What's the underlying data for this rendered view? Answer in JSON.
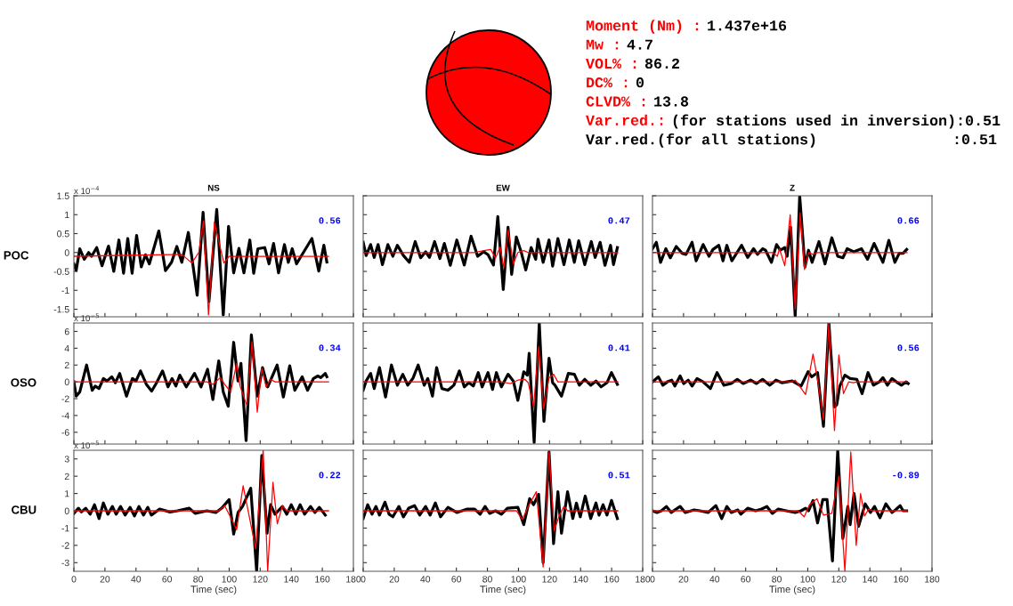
{
  "chart_data": [
    {
      "type": "other",
      "annotations": [
        "Moment (Nm) :",
        "1.437e+16",
        "Mw :",
        "4.7",
        "VOL% :",
        "86.2",
        "DC% :",
        "0",
        "CLVD% :",
        "13.8",
        "Var.red.:",
        "(for stations used in inversion):0.51",
        "Var.red.(for all stations)",
        ":0.51"
      ],
      "colors": [
        "#ff0000",
        "#000000",
        "#ff0000",
        "#000000",
        "#ff0000",
        "#000000",
        "#ff0000",
        "#000000",
        "#ff0000",
        "#000000",
        "#ff0000",
        "#000000",
        "#000000",
        "#000000"
      ]
    },
    {
      "type": "line",
      "title": "NS",
      "ylabel": "POC",
      "xlim": [
        0,
        180
      ],
      "xticks": [
        0,
        20,
        40,
        60,
        80,
        100,
        120,
        140,
        160,
        180
      ],
      "ylim": [
        -1.7,
        1.5
      ],
      "yticks": [
        -1.5,
        -1,
        -0.5,
        0,
        0.5,
        1,
        1.5
      ],
      "tick_labels": "y",
      "annotations": [
        "0.56",
        "x 10$^{−4}$"
      ],
      "series": [
        {
          "color": "#000000",
          "x": [
            0,
            1.5,
            3.8,
            6.7,
            9.5,
            11.4,
            14.7,
            18.1,
            22.3,
            25.7,
            29,
            32,
            34.7,
            37.5,
            40.4,
            43.4,
            46.1,
            48.6,
            54.7,
            59,
            62.9,
            66.3,
            69.5,
            73.7,
            79.4,
            83.2,
            87,
            92,
            96.2,
            99.6,
            102.9,
            106.3,
            109.5,
            113.3,
            115.8,
            118.5,
            122.9,
            125.7,
            128.6,
            131.8,
            135.6,
            138.1,
            140.6,
            143.4,
            145.7,
            153.3,
            157.7,
            161,
            162.9
          ],
          "values": [
            -0.3,
            -0.47,
            0.1,
            -0.18,
            0,
            -0.1,
            0.13,
            -0.35,
            0.17,
            -0.5,
            0.33,
            -0.55,
            0.37,
            -0.55,
            0.45,
            -0.38,
            -0.06,
            -0.3,
            0.57,
            -0.48,
            -0.26,
            0.16,
            -0.26,
            0.53,
            -1.13,
            1.06,
            -1.3,
            1.14,
            -1.65,
            0.69,
            -0.54,
            0.11,
            -0.54,
            0.33,
            -0.55,
            0.1,
            0.13,
            -0.3,
            0.24,
            -0.54,
            0.21,
            -0.26,
            0.1,
            -0.3,
            -0.14,
            0.37,
            -0.49,
            0.19,
            -0.25
          ]
        },
        {
          "color": "#ff0000",
          "x": [
            0,
            69.5,
            76,
            80.4,
            83.4,
            86.7,
            90.5,
            93.3,
            96.6,
            100,
            164
          ],
          "values": [
            -0.1,
            -0.05,
            -0.28,
            0,
            0.83,
            -1.65,
            0.8,
            0.3,
            -0.28,
            -0.1,
            -0.1
          ]
        }
      ]
    },
    {
      "type": "line",
      "title": "EW",
      "xlim": [
        0,
        180
      ],
      "xticks": [
        0,
        20,
        40,
        60,
        80,
        100,
        120,
        140,
        160,
        180
      ],
      "ylim": [
        -1.7,
        1.5
      ],
      "yticks": [
        -1.5,
        -1,
        -0.5,
        0,
        0.5,
        1,
        1.5
      ],
      "tick_labels": false,
      "annotations": [
        "0.47"
      ],
      "series": [
        {
          "color": "#000000",
          "x": [
            0,
            1.9,
            4.8,
            7.1,
            9.6,
            12.4,
            15.9,
            19.1,
            22,
            25.9,
            29.7,
            33.5,
            37,
            40.2,
            42.7,
            46,
            49.4,
            52.3,
            56.1,
            60.3,
            65.1,
            69.5,
            73.7,
            77.6,
            80.4,
            83.9,
            86.7,
            90.2,
            93.3,
            95.6,
            98.6,
            101.7,
            104.7,
            108.2,
            111.1,
            112.6,
            115.9,
            119.7,
            122,
            125.4,
            129.3,
            132.7,
            136,
            138.8,
            142.7,
            146.9,
            149.4,
            152.6,
            155.7,
            159.3,
            161.2,
            163.7
          ],
          "values": [
            0.27,
            -0.08,
            0.21,
            -0.13,
            0.21,
            -0.32,
            0.21,
            -0.1,
            0.19,
            -0.08,
            -0.26,
            0.29,
            -0.14,
            0.02,
            -0.13,
            0.29,
            -0.16,
            0.24,
            -0.34,
            0.33,
            -0.33,
            0.43,
            -0.1,
            0.02,
            -0.06,
            -0.33,
            0.95,
            -0.98,
            0.67,
            -0.58,
            0.41,
            0.02,
            -0.46,
            0.13,
            -0.18,
            0.35,
            -0.26,
            0.33,
            -0.36,
            0.37,
            -0.32,
            0.33,
            -0.26,
            0.31,
            -0.32,
            0.29,
            -0.13,
            0.27,
            -0.34,
            0.19,
            -0.32,
            0.13
          ]
        },
        {
          "color": "#ff0000",
          "x": [
            0,
            71.8,
            77.6,
            82.2,
            85.2,
            88.1,
            90.6,
            93.3,
            96.7,
            99.6,
            103.4,
            106.3,
            164
          ],
          "values": [
            0,
            0,
            0.05,
            0.08,
            -0.15,
            0.15,
            -0.4,
            0.6,
            -0.3,
            0,
            0.05,
            0,
            0
          ]
        }
      ]
    },
    {
      "type": "line",
      "title": "Z",
      "xlim": [
        0,
        180
      ],
      "xticks": [
        0,
        20,
        40,
        60,
        80,
        100,
        120,
        140,
        160,
        180
      ],
      "ylim": [
        -1.7,
        1.5
      ],
      "yticks": [
        -1.5,
        -1,
        -0.5,
        0,
        0.5,
        1,
        1.5
      ],
      "tick_labels": false,
      "annotations": [
        "0.66"
      ],
      "series": [
        {
          "color": "#000000",
          "x": [
            0,
            2.5,
            5.2,
            8.6,
            11.5,
            15.3,
            19.1,
            21.6,
            25.5,
            28.1,
            32.6,
            36.4,
            38.9,
            42.7,
            45.4,
            47.9,
            51.1,
            57.4,
            61.3,
            65.1,
            67.6,
            70.9,
            72.8,
            76.6,
            79.9,
            82.3,
            85.2,
            86.7,
            89,
            91.9,
            94.8,
            98.2,
            100.5,
            102.8,
            107.2,
            111.1,
            115.5,
            119.3,
            122.6,
            125.4,
            129.6,
            134.6,
            138.5,
            142.7,
            148.4,
            152.2,
            156.1,
            158.9,
            161.4,
            163.7
          ],
          "values": [
            0.1,
            0.27,
            -0.26,
            0.1,
            -0.14,
            0.16,
            -0.02,
            -0.05,
            0.27,
            -0.22,
            0.21,
            -0.1,
            0.08,
            0.19,
            -0.22,
            0.19,
            -0.22,
            0.19,
            -0.13,
            0.1,
            -0.05,
            0.1,
            0.06,
            -0.26,
            0.21,
            0.06,
            0.13,
            -0.1,
            0.67,
            -1.69,
            1.5,
            -0.38,
            0.06,
            -0.26,
            0.29,
            -0.3,
            0.39,
            -0.1,
            -0.14,
            0.1,
            0.02,
            0.1,
            -0.18,
            0.24,
            -0.26,
            0.32,
            -0.26,
            -0.02,
            -0.02,
            0.08
          ]
        },
        {
          "color": "#ff0000",
          "x": [
            0,
            77.6,
            80.4,
            81.8,
            85.2,
            88.7,
            91.9,
            95.1,
            97.9,
            100.5,
            103.4,
            106.3,
            164
          ],
          "values": [
            0,
            0,
            -0.1,
            0.1,
            -0.35,
            1.0,
            -1.5,
            1.05,
            -0.45,
            0,
            -0.05,
            0,
            0
          ]
        }
      ]
    },
    {
      "type": "line",
      "ylabel": "OSO",
      "xlim": [
        0,
        180
      ],
      "xticks": [
        0,
        20,
        40,
        60,
        80,
        100,
        120,
        140,
        160,
        180
      ],
      "ylim": [
        -7.4,
        7
      ],
      "yticks": [
        -6,
        -4,
        -2,
        0,
        2,
        4,
        6
      ],
      "tick_labels": "y",
      "annotations": [
        "0.34",
        "x 10$^{−5}$"
      ],
      "series": [
        {
          "color": "#000000",
          "x": [
            0,
            1.5,
            3.8,
            8.2,
            11.8,
            13.7,
            16.2,
            19,
            21.3,
            24.4,
            26.7,
            29.5,
            33.9,
            37.7,
            40,
            42.9,
            46.7,
            50.1,
            53.3,
            57.1,
            60.6,
            63.2,
            65.7,
            68.2,
            72.4,
            77.7,
            81.9,
            86.1,
            89.5,
            93.3,
            96.2,
            99.4,
            102.9,
            105.7,
            107.6,
            110.9,
            114.3,
            118.1,
            121.5,
            124.8,
            130.9,
            134.9,
            139,
            142.3,
            147,
            150.5,
            154.3,
            157.1,
            159,
            161.9,
            162.9
          ],
          "values": [
            0,
            -1.7,
            -1.2,
            2.0,
            -1.0,
            -0.5,
            -0.8,
            0.4,
            0.1,
            0.6,
            -0.1,
            1.0,
            -1.7,
            0.4,
            0.1,
            1.3,
            -0.3,
            -1.1,
            -0.1,
            1.3,
            -0.6,
            0.4,
            -0.5,
            0.8,
            -0.6,
            1.0,
            -0.6,
            1.5,
            -2.1,
            2.5,
            -1.2,
            -2.9,
            4.7,
            0.1,
            2.2,
            -7.0,
            5.6,
            -1.7,
            1.7,
            -0.6,
            2.0,
            -1.8,
            1.9,
            -1.0,
            0.6,
            -1.0,
            0.4,
            0.7,
            0.5,
            1.0,
            0.6
          ]
        },
        {
          "color": "#ff0000",
          "x": [
            0,
            85.7,
            89.5,
            94.3,
            97.1,
            101,
            104.8,
            107,
            111.4,
            114.7,
            118.1,
            121,
            123.8,
            126.7,
            129.5,
            164
          ],
          "values": [
            0,
            0,
            -0.3,
            0.5,
            -0.3,
            -1.2,
            2.2,
            -0.5,
            -2.8,
            4.8,
            -3.6,
            1.6,
            -0.6,
            0.3,
            0,
            0
          ]
        }
      ]
    },
    {
      "type": "line",
      "xlim": [
        0,
        180
      ],
      "xticks": [
        0,
        20,
        40,
        60,
        80,
        100,
        120,
        140,
        160,
        180
      ],
      "ylim": [
        -7.4,
        7
      ],
      "yticks": [
        -6,
        -4,
        -2,
        0,
        2,
        4,
        6
      ],
      "tick_labels": false,
      "annotations": [
        "0.41"
      ],
      "series": [
        {
          "color": "#000000",
          "x": [
            0,
            1.9,
            4.8,
            7.1,
            10.5,
            14.4,
            18.2,
            22,
            25.5,
            28.7,
            32,
            35.4,
            39.3,
            41.6,
            44.6,
            47.3,
            50.7,
            54.6,
            58.4,
            61.9,
            65.1,
            68,
            70.9,
            74.1,
            76.6,
            80.4,
            83.3,
            85.8,
            89,
            93.3,
            96.7,
            99.6,
            103.4,
            105.7,
            106.9,
            110.1,
            113.4,
            116.4,
            119.7,
            122,
            123.5,
            127.7,
            132.1,
            136,
            139.2,
            142.7,
            146.5,
            149.9,
            153.2,
            157,
            159.9,
            163.7
          ],
          "values": [
            -1.0,
            0.1,
            1.0,
            -0.8,
            1.7,
            -1.8,
            2.0,
            -0.4,
            0.9,
            -0.4,
            0.4,
            2.0,
            -0.4,
            0.4,
            -1.7,
            1.7,
            -0.8,
            -1.0,
            -0.4,
            1.3,
            -0.6,
            -0.1,
            -0.5,
            1.1,
            -0.6,
            1.1,
            -0.9,
            1.1,
            -0.6,
            0.9,
            0.1,
            -2.2,
            1.2,
            0.8,
            3.4,
            -7.2,
            7.0,
            -4.7,
            2.8,
            -0.1,
            -0.4,
            -1.7,
            1.0,
            0.9,
            -0.4,
            0.3,
            -0.4,
            0.1,
            -0.6,
            -0.1,
            1.1,
            -0.3
          ]
        },
        {
          "color": "#ff0000",
          "x": [
            0,
            89,
            94.8,
            99.6,
            104,
            106.3,
            109.7,
            113,
            116.2,
            119.7,
            122.6,
            125.4,
            164
          ],
          "values": [
            0,
            0,
            -0.2,
            0.2,
            0.3,
            -0.1,
            -3.0,
            4.2,
            -3.2,
            0.5,
            0.9,
            0,
            0
          ]
        }
      ]
    },
    {
      "type": "line",
      "xlim": [
        0,
        180
      ],
      "xticks": [
        0,
        20,
        40,
        60,
        80,
        100,
        120,
        140,
        160,
        180
      ],
      "ylim": [
        -7.4,
        7
      ],
      "yticks": [
        -6,
        -4,
        -2,
        0,
        2,
        4,
        6
      ],
      "tick_labels": false,
      "annotations": [
        "0.56"
      ],
      "series": [
        {
          "color": "#000000",
          "x": [
            0,
            3.8,
            6.7,
            9.6,
            12.4,
            14.4,
            17.8,
            20.1,
            23,
            25.5,
            28.7,
            32.6,
            37.3,
            41.6,
            46,
            50.7,
            54.6,
            58.4,
            63.2,
            67,
            70.9,
            75.6,
            79.5,
            83.3,
            90,
            95.7,
            100.2,
            102.5,
            106.3,
            110.1,
            113.6,
            117.2,
            118.7,
            120.6,
            123.9,
            127.3,
            131.6,
            135,
            138.8,
            142.3,
            146.1,
            148.4,
            151.3,
            154.2,
            157,
            160.3,
            163.4,
            164.7
          ],
          "values": [
            0,
            0.6,
            -0.4,
            0,
            0.2,
            -0.5,
            0.7,
            -0.2,
            0.2,
            -0.5,
            0.4,
            0,
            -0.8,
            1.1,
            -0.4,
            -0.2,
            0.3,
            -0.2,
            0.2,
            -0.2,
            0.3,
            -0.4,
            0.2,
            -0.1,
            0.1,
            -0.5,
            1.2,
            0.6,
            1.1,
            -5.3,
            7.0,
            -3.0,
            -2.7,
            -0.5,
            0.8,
            0.4,
            0.3,
            -1.4,
            1.1,
            -0.4,
            0,
            0.5,
            -0.4,
            0.4,
            0,
            -0.4,
            0,
            -0.2
          ]
        },
        {
          "color": "#ff0000",
          "x": [
            0,
            89,
            91.9,
            98.6,
            103.4,
            106.9,
            110.1,
            113.6,
            117.2,
            120,
            123,
            126.4,
            129.3,
            132.1,
            164
          ],
          "values": [
            0,
            0,
            0.2,
            -1.5,
            3.3,
            -0.4,
            -4.5,
            7.0,
            -5.8,
            3.2,
            -1.4,
            0,
            -0.1,
            0,
            0
          ]
        }
      ]
    },
    {
      "type": "line",
      "ylabel": "CBU",
      "xlabel": "Time (sec)",
      "xlim": [
        0,
        180
      ],
      "xticks": [
        0,
        20,
        40,
        60,
        80,
        100,
        120,
        140,
        160,
        180
      ],
      "ylim": [
        -3.5,
        3.5
      ],
      "yticks": [
        -3,
        -2,
        -1,
        0,
        1,
        2,
        3
      ],
      "annotations": [
        "0.22",
        "x 10$^{−5}$"
      ],
      "series": [
        {
          "color": "#000000",
          "x": [
            0,
            2.9,
            4.8,
            7.6,
            10.5,
            13.3,
            16.2,
            19,
            21.9,
            24.8,
            27.2,
            30.1,
            33,
            36.2,
            39,
            41.9,
            44.8,
            47.6,
            49.9,
            55.2,
            61.9,
            66.7,
            74.3,
            78.1,
            85.7,
            91.4,
            95.2,
            100,
            102.9,
            105.7,
            108.6,
            113.9,
            117.7,
            121,
            124.4,
            126.7,
            129.5,
            134.3,
            137.1,
            140,
            142.9,
            145.7,
            148.6,
            152.4,
            155.2,
            158.1,
            161.9
          ],
          "values": [
            -0.15,
            0.15,
            -0.07,
            0.15,
            -0.2,
            0.35,
            -0.45,
            0.45,
            -0.2,
            0.25,
            -0.2,
            0.25,
            -0.25,
            0.2,
            -0.3,
            0.25,
            -0.25,
            0.2,
            -0.25,
            0.1,
            -0.07,
            0,
            0.15,
            -0.15,
            0,
            -0.1,
            0.15,
            0.65,
            -1.35,
            -0.1,
            0.25,
            1.3,
            -3.5,
            3.2,
            -1.3,
            0.35,
            -0.2,
            0.25,
            -0.2,
            0.35,
            -0.2,
            0.35,
            -0.2,
            0.25,
            -0.1,
            0.2,
            -0.25
          ]
        },
        {
          "color": "#ff0000",
          "x": [
            0,
            93.3,
            97.1,
            101,
            104.8,
            109,
            113.3,
            117.1,
            121.9,
            124.8,
            128.2,
            131,
            134.3,
            137.1,
            164
          ],
          "values": [
            0,
            0,
            0.3,
            -0.4,
            -1.1,
            1.45,
            -0.5,
            -2.2,
            3.5,
            -3.5,
            1.65,
            -0.75,
            0.3,
            0,
            0
          ]
        }
      ]
    },
    {
      "type": "line",
      "xlabel": "Time (sec)",
      "xlim": [
        0,
        180
      ],
      "xticks": [
        0,
        20,
        40,
        60,
        80,
        100,
        120,
        140,
        160,
        180
      ],
      "ylim": [
        -3.5,
        3.5
      ],
      "yticks": [
        -3,
        -2,
        -1,
        0,
        1,
        2,
        3
      ],
      "tick_labels": "x",
      "annotations": [
        "0.51"
      ],
      "series": [
        {
          "color": "#000000",
          "x": [
            0,
            2.9,
            5.7,
            8.2,
            10.5,
            14,
            16.7,
            19.1,
            23,
            25.9,
            29.3,
            33.1,
            36.4,
            40.2,
            43.1,
            46.5,
            49.8,
            54.6,
            60.3,
            67,
            71.8,
            75.3,
            78.5,
            81.4,
            85.2,
            89,
            92.9,
            99.6,
            103.4,
            107.2,
            109.7,
            113,
            115.9,
            119.7,
            122.6,
            125.4,
            127.7,
            131.6,
            135,
            137.3,
            139.8,
            143,
            146.5,
            149.9,
            151.9,
            154.5,
            157,
            159.9,
            163.7
          ],
          "values": [
            -0.45,
            0.35,
            -0.2,
            0.25,
            -0.25,
            0.5,
            -0.2,
            -0.35,
            0.25,
            -0.35,
            0.15,
            0.3,
            -0.25,
            0.25,
            -0.25,
            0.45,
            -0.35,
            0.2,
            -0.1,
            0.1,
            0.1,
            -0.2,
            0.25,
            -0.15,
            0,
            -0.2,
            0.15,
            0.2,
            -0.8,
            0.7,
            0.35,
            0.95,
            -3.0,
            3.4,
            -1.9,
            1.1,
            -1.3,
            1.1,
            -0.45,
            0.45,
            -0.35,
            0.85,
            -0.45,
            0.45,
            -0.25,
            0.35,
            -0.25,
            0.6,
            -0.45
          ]
        },
        {
          "color": "#ff0000",
          "x": [
            0,
            98.6,
            102.5,
            106.3,
            111.5,
            115.9,
            119.7,
            123,
            126.4,
            129.3,
            131.6,
            164
          ],
          "values": [
            0,
            0,
            -0.5,
            0.25,
            1.1,
            -3.25,
            3.4,
            -1.15,
            -0.25,
            0.25,
            0,
            0
          ]
        }
      ]
    },
    {
      "type": "line",
      "xlabel": "Time (sec)",
      "xlim": [
        0,
        180
      ],
      "xticks": [
        0,
        20,
        40,
        60,
        80,
        100,
        120,
        140,
        160,
        180
      ],
      "ylim": [
        -3.5,
        3.5
      ],
      "yticks": [
        -3,
        -2,
        -1,
        0,
        1,
        2,
        3
      ],
      "tick_labels": "x",
      "annotations": [
        "-0.89"
      ],
      "series": [
        {
          "color": "#000000",
          "x": [
            0,
            2.9,
            5.7,
            9,
            12.1,
            17.8,
            21.1,
            26.8,
            30.6,
            35.8,
            40.8,
            44.6,
            47.9,
            50.7,
            55,
            56.9,
            61.3,
            66.4,
            70.3,
            73.7,
            77.2,
            81,
            86.2,
            91.9,
            95.7,
            98.6,
            100.5,
            103.4,
            106.3,
            109.7,
            112.4,
            115.9,
            119.3,
            122.6,
            125.8,
            127.3,
            129.8,
            132.7,
            137,
            140.4,
            143,
            146.5,
            150.3,
            154.2,
            156.5,
            159.5,
            161.4,
            163.7
          ],
          "values": [
            0,
            -0.1,
            0,
            0.25,
            -0.1,
            0.25,
            -0.1,
            0.05,
            0,
            -0.1,
            0.3,
            -0.45,
            0.25,
            -0.1,
            0.05,
            -0.2,
            0.15,
            0,
            0.1,
            0.25,
            -0.15,
            0.1,
            0,
            -0.1,
            0,
            0.15,
            0,
            0.6,
            -0.7,
            0.65,
            0.65,
            -2.9,
            3.5,
            -1.6,
            0.25,
            -0.8,
            1.0,
            -0.9,
            0.4,
            -0.1,
            0.25,
            -0.4,
            0.4,
            -0.1,
            0.05,
            0.3,
            0,
            0
          ]
        },
        {
          "color": "#ff0000",
          "x": [
            0,
            93.8,
            97.7,
            101.1,
            105.9,
            110.1,
            115.5,
            120,
            123.9,
            127.7,
            131.2,
            134,
            136.6,
            139.2,
            141.7,
            164
          ],
          "values": [
            0,
            0,
            -0.35,
            0.35,
            0.7,
            -0.25,
            -0.15,
            2.0,
            -3.5,
            3.4,
            -2.0,
            1.0,
            -0.3,
            0.1,
            0,
            0
          ]
        }
      ]
    }
  ]
}
